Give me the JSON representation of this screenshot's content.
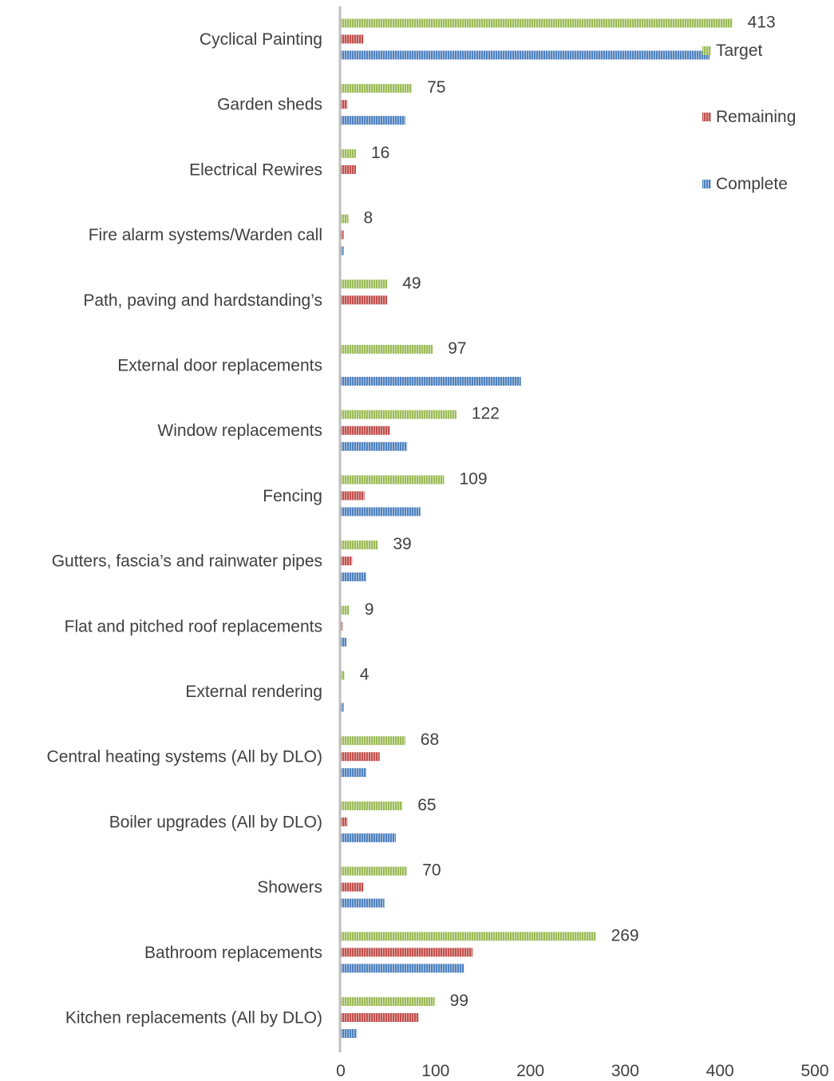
{
  "chart_data": {
    "type": "bar",
    "orientation": "horizontal",
    "categories": [
      "Cyclical Painting",
      "Garden sheds",
      "Electrical Rewires",
      "Fire alarm systems/Warden call",
      "Path, paving and hardstanding’s",
      "External door replacements",
      "Window replacements",
      "Fencing",
      "Gutters, fascia’s and rainwater pipes",
      "Flat and pitched roof replacements",
      "External rendering",
      "Central heating systems (All by DLO)",
      "Boiler upgrades (All by DLO) ",
      "Showers",
      "Bathroom replacements",
      "Kitchen replacements (All by DLO)"
    ],
    "series": [
      {
        "name": "Target",
        "color": "#9bbb59",
        "values": [
          413,
          75,
          16,
          8,
          49,
          97,
          122,
          109,
          39,
          9,
          4,
          68,
          65,
          70,
          269,
          99
        ]
      },
      {
        "name": "Remaining",
        "color": "#c0504d",
        "values": [
          24,
          7,
          16,
          3,
          49,
          0,
          52,
          25,
          12,
          2,
          0,
          41,
          7,
          24,
          139,
          82
        ]
      },
      {
        "name": "Complete",
        "color": "#4f81bd",
        "values": [
          389,
          68,
          0,
          3,
          0,
          190,
          70,
          84,
          27,
          6,
          3,
          27,
          58,
          46,
          130,
          17
        ]
      }
    ],
    "data_labels": [
      "413",
      "75",
      "16",
      "8",
      "49",
      "97",
      "122",
      "109",
      "39",
      "9",
      "4",
      "68",
      "65",
      "70",
      "269",
      "99"
    ],
    "x_ticks": [
      "0",
      "100",
      "200",
      "300",
      "400",
      "500"
    ],
    "xlim": [
      0,
      500
    ],
    "grid": false,
    "legend": {
      "placement": "right",
      "entries": [
        "Target",
        "Remaining",
        "Complete"
      ]
    }
  }
}
